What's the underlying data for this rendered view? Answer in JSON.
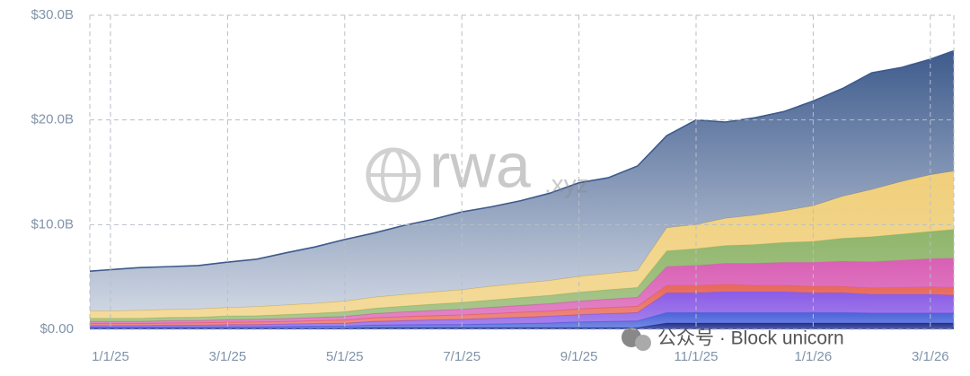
{
  "chart_data": {
    "type": "stacked-area",
    "categories": [
      null,
      "1/1/25",
      null,
      null,
      null,
      "3/1/25",
      null,
      null,
      null,
      "5/1/25",
      null,
      null,
      null,
      "7/1/25",
      null,
      null,
      null,
      "9/1/25",
      null,
      null,
      null,
      "11/1/25",
      null,
      null,
      null,
      "1/1/26",
      null,
      null,
      null,
      "3/1/26",
      null
    ],
    "series": [
      {
        "color": "#1f2f8a",
        "values": [
          0.1,
          0.1,
          0.1,
          0.1,
          0.1,
          0.1,
          0.1,
          0.1,
          0.1,
          0.1,
          0.15,
          0.15,
          0.15,
          0.15,
          0.15,
          0.15,
          0.15,
          0.15,
          0.15,
          0.15,
          0.6,
          0.6,
          0.6,
          0.6,
          0.6,
          0.6,
          0.6,
          0.6,
          0.6,
          0.6,
          0.6
        ]
      },
      {
        "color": "#4a63d9",
        "values": [
          0.1,
          0.1,
          0.1,
          0.12,
          0.12,
          0.15,
          0.15,
          0.18,
          0.2,
          0.2,
          0.25,
          0.28,
          0.3,
          0.3,
          0.35,
          0.4,
          0.45,
          0.55,
          0.6,
          0.65,
          1,
          1,
          1,
          1,
          1,
          1,
          1,
          0.95,
          0.95,
          0.95,
          0.95
        ]
      },
      {
        "color": "#8a5ce6",
        "values": [
          0.15,
          0.15,
          0.15,
          0.18,
          0.18,
          0.2,
          0.2,
          0.22,
          0.25,
          0.28,
          0.35,
          0.4,
          0.45,
          0.5,
          0.55,
          0.6,
          0.65,
          0.7,
          0.75,
          0.8,
          1.9,
          1.9,
          2,
          2,
          2,
          1.9,
          1.9,
          1.8,
          1.8,
          1.8,
          1.7
        ]
      },
      {
        "color": "#e8685a",
        "values": [
          0.2,
          0.2,
          0.2,
          0.2,
          0.22,
          0.22,
          0.25,
          0.25,
          0.28,
          0.3,
          0.35,
          0.38,
          0.4,
          0.42,
          0.45,
          0.48,
          0.5,
          0.55,
          0.58,
          0.6,
          0.7,
          0.7,
          0.7,
          0.6,
          0.6,
          0.6,
          0.6,
          0.6,
          0.65,
          0.7,
          0.75
        ]
      },
      {
        "color": "#d95fb5",
        "values": [
          0.2,
          0.2,
          0.2,
          0.22,
          0.22,
          0.25,
          0.25,
          0.28,
          0.3,
          0.35,
          0.4,
          0.45,
          0.5,
          0.55,
          0.6,
          0.65,
          0.7,
          0.75,
          0.8,
          0.85,
          1.8,
          1.9,
          2,
          2.1,
          2.2,
          2.3,
          2.4,
          2.5,
          2.6,
          2.7,
          2.8
        ]
      },
      {
        "color": "#8fb56a",
        "values": [
          0.3,
          0.3,
          0.3,
          0.32,
          0.32,
          0.35,
          0.35,
          0.38,
          0.4,
          0.45,
          0.5,
          0.55,
          0.6,
          0.65,
          0.7,
          0.75,
          0.8,
          0.85,
          0.9,
          0.95,
          1.5,
          1.6,
          1.7,
          1.8,
          1.9,
          2,
          2.2,
          2.4,
          2.5,
          2.6,
          2.8
        ]
      },
      {
        "color": "#f0cf7a",
        "values": [
          0.7,
          0.7,
          0.75,
          0.75,
          0.78,
          0.8,
          0.85,
          0.9,
          0.95,
          1,
          1.05,
          1.1,
          1.15,
          1.2,
          1.3,
          1.35,
          1.4,
          1.5,
          1.55,
          1.6,
          2.2,
          2.3,
          2.6,
          2.8,
          3,
          3.4,
          4,
          4.5,
          5,
          5.4,
          5.6
        ]
      },
      {
        "color": "#3d5a8c",
        "values": [
          3.75,
          3.95,
          4.1,
          4.1,
          4.15,
          4.35,
          4.55,
          5.0,
          5.4,
          5.9,
          6.15,
          6.6,
          6.95,
          7.45,
          7.6,
          7.9,
          8.35,
          8.95,
          9.15,
          10.0,
          8.8,
          10.0,
          9.2,
          9.3,
          9.5,
          10.0,
          10.3,
          11.15,
          10.9,
          11.05,
          11.6
        ]
      }
    ],
    "ylim": [
      0,
      30
    ],
    "yticks": [
      {
        "value": 0,
        "label": "$0.00"
      },
      {
        "value": 10,
        "label": "$10.0B"
      },
      {
        "value": 20,
        "label": "$20.0B"
      },
      {
        "value": 30,
        "label": "$30.0B"
      }
    ],
    "grid": true,
    "annotations": [
      "rwa",
      ".xyz",
      "公众号 · Block unicorn"
    ]
  }
}
